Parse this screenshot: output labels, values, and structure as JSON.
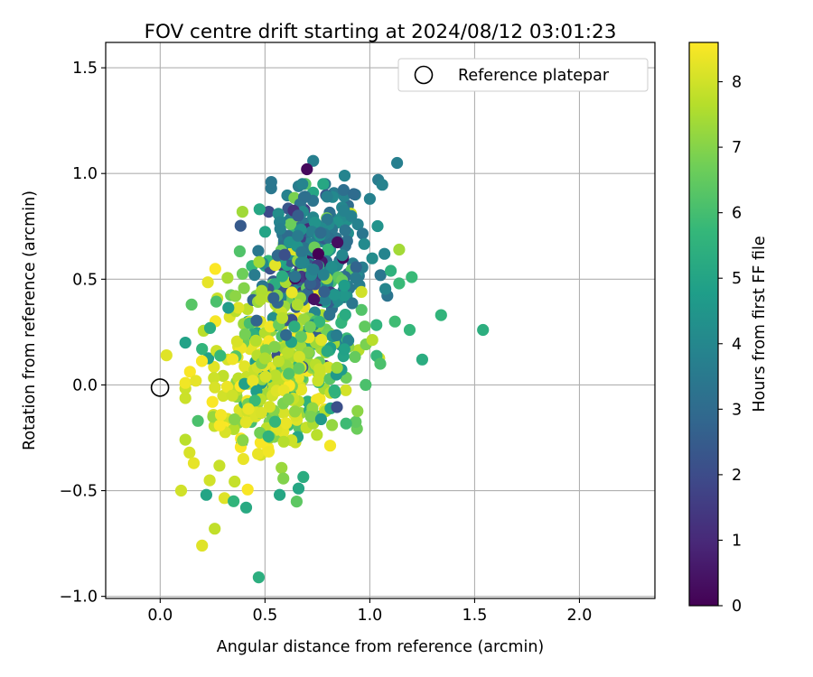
{
  "chart_data": {
    "type": "scatter",
    "title": "FOV centre drift starting at 2024/08/12 03:01:23",
    "xlabel": "Angular distance from reference (arcmin)",
    "ylabel": "Rotation from reference (arcmin)",
    "xlim": [
      -0.26,
      2.36
    ],
    "ylim": [
      -1.01,
      1.62
    ],
    "xticks": [
      0.0,
      0.5,
      1.0,
      1.5,
      2.0
    ],
    "xtick_labels": [
      "0.0",
      "0.5",
      "1.0",
      "1.5",
      "2.0"
    ],
    "yticks": [
      -1.0,
      -0.5,
      0.0,
      0.5,
      1.0,
      1.5
    ],
    "ytick_labels": [
      "−1.0",
      "−0.5",
      "0.0",
      "0.5",
      "1.0",
      "1.5"
    ],
    "grid": true,
    "legend": {
      "placement": "top-right",
      "entries": [
        "Reference platepar"
      ]
    },
    "reference_point": {
      "x": 0.0,
      "y": 0.0
    },
    "colorbar": {
      "label": "Hours from first FF file",
      "range": [
        0,
        8.6
      ],
      "ticks": [
        0,
        1,
        2,
        3,
        4,
        5,
        6,
        7,
        8
      ],
      "tick_labels": [
        "0",
        "1",
        "2",
        "3",
        "4",
        "5",
        "6",
        "7",
        "8"
      ],
      "colormap": [
        "#440154",
        "#482878",
        "#3e4989",
        "#31688e",
        "#26828e",
        "#1f9e89",
        "#35b779",
        "#6ece58",
        "#b5de2b",
        "#fde725"
      ]
    },
    "point_groups": [
      {
        "hours_range": [
          0,
          1.5
        ],
        "center": [
          0.72,
          0.58
        ],
        "spread": [
          0.07,
          0.15
        ],
        "count": 18
      },
      {
        "hours_range": [
          1.5,
          3.0
        ],
        "center": [
          0.66,
          0.42
        ],
        "spread": [
          0.12,
          0.22
        ],
        "count": 60
      },
      {
        "hours_range": [
          3.0,
          4.5
        ],
        "center": [
          0.78,
          0.62
        ],
        "spread": [
          0.12,
          0.17
        ],
        "count": 150
      },
      {
        "hours_range": [
          4.5,
          6.5
        ],
        "center": [
          0.66,
          0.24
        ],
        "spread": [
          0.19,
          0.3
        ],
        "count": 120
      },
      {
        "hours_range": [
          6.5,
          7.7
        ],
        "center": [
          0.6,
          0.14
        ],
        "spread": [
          0.17,
          0.25
        ],
        "count": 150
      },
      {
        "hours_range": [
          7.7,
          8.6
        ],
        "center": [
          0.5,
          0.0
        ],
        "spread": [
          0.16,
          0.22
        ],
        "count": 170
      }
    ],
    "points": [
      {
        "x": 0.7,
        "y": 1.02,
        "h": 0.2
      },
      {
        "x": 0.73,
        "y": 1.06,
        "h": 3.7
      },
      {
        "x": 0.53,
        "y": 0.96,
        "h": 3.4
      },
      {
        "x": 0.66,
        "y": 0.94,
        "h": 3.6
      },
      {
        "x": 0.88,
        "y": 0.99,
        "h": 3.9
      },
      {
        "x": 0.93,
        "y": 0.9,
        "h": 3.5
      },
      {
        "x": 1.0,
        "y": 0.88,
        "h": 3.8
      },
      {
        "x": 1.04,
        "y": 0.97,
        "h": 3.6
      },
      {
        "x": 1.13,
        "y": 1.05,
        "h": 3.7
      },
      {
        "x": 0.45,
        "y": 0.52,
        "h": 3.6
      },
      {
        "x": 0.54,
        "y": 0.49,
        "h": 2.5
      },
      {
        "x": 0.57,
        "y": 0.77,
        "h": 3.9
      },
      {
        "x": 1.07,
        "y": 0.62,
        "h": 3.9
      },
      {
        "x": 1.1,
        "y": 0.54,
        "h": 5.5
      },
      {
        "x": 1.14,
        "y": 0.64,
        "h": 7.4
      },
      {
        "x": 1.14,
        "y": 0.48,
        "h": 5.8
      },
      {
        "x": 1.2,
        "y": 0.51,
        "h": 5.8
      },
      {
        "x": 1.12,
        "y": 0.3,
        "h": 5.9
      },
      {
        "x": 1.19,
        "y": 0.26,
        "h": 5.7
      },
      {
        "x": 1.25,
        "y": 0.12,
        "h": 5.3
      },
      {
        "x": 1.34,
        "y": 0.33,
        "h": 5.6
      },
      {
        "x": 1.54,
        "y": 0.26,
        "h": 5.4
      },
      {
        "x": 1.05,
        "y": 0.1,
        "h": 6.1
      },
      {
        "x": 0.98,
        "y": 0.0,
        "h": 6.1
      },
      {
        "x": 0.15,
        "y": 0.38,
        "h": 6.3
      },
      {
        "x": 0.2,
        "y": 0.17,
        "h": 5.6
      },
      {
        "x": 0.18,
        "y": -0.17,
        "h": 6.1
      },
      {
        "x": 0.22,
        "y": -0.52,
        "h": 5.0
      },
      {
        "x": 0.26,
        "y": -0.68,
        "h": 7.8
      },
      {
        "x": 0.2,
        "y": -0.76,
        "h": 8.2
      },
      {
        "x": 0.41,
        "y": -0.58,
        "h": 5.2
      },
      {
        "x": 0.35,
        "y": -0.55,
        "h": 5.6
      },
      {
        "x": 0.47,
        "y": -0.91,
        "h": 5.4
      },
      {
        "x": 0.57,
        "y": -0.52,
        "h": 5.1
      },
      {
        "x": 0.66,
        "y": -0.49,
        "h": 5.1
      },
      {
        "x": 0.1,
        "y": -0.5,
        "h": 8.0
      },
      {
        "x": 0.03,
        "y": 0.14,
        "h": 8.2
      },
      {
        "x": 0.17,
        "y": 0.02,
        "h": 8.3
      },
      {
        "x": 0.14,
        "y": -0.32,
        "h": 8.1
      },
      {
        "x": 0.16,
        "y": -0.37,
        "h": 8.3
      },
      {
        "x": 0.82,
        "y": -0.19,
        "h": 7.2
      },
      {
        "x": 0.89,
        "y": 0.22,
        "h": 5.8
      },
      {
        "x": 0.96,
        "y": 0.44,
        "h": 8.0
      },
      {
        "x": 0.91,
        "y": 0.81,
        "h": 7.9
      }
    ]
  }
}
